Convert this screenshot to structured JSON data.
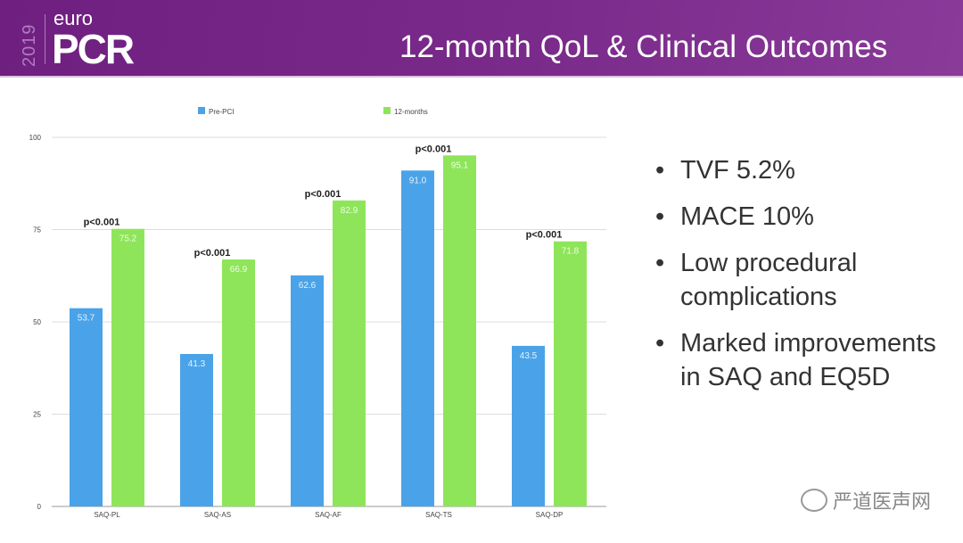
{
  "header": {
    "year": "2019",
    "logo_small": "euro",
    "logo_big": "PCR",
    "title": "12-month QoL & Clinical Outcomes"
  },
  "bullets": [
    "TVF 5.2%",
    "MACE 10%",
    "Low procedural complications",
    "Marked improvements in SAQ and EQ5D"
  ],
  "watermark": "严道医声网",
  "chart_data": {
    "type": "bar",
    "categories": [
      "SAQ-PL",
      "SAQ-AS",
      "SAQ-AF",
      "SAQ-TS",
      "SAQ-DP"
    ],
    "series": [
      {
        "name": "Pre-PCI",
        "color": "#4aa3e8",
        "values": [
          53.7,
          41.3,
          62.6,
          91.0,
          43.5
        ]
      },
      {
        "name": "12-months",
        "color": "#8ee55a",
        "values": [
          75.2,
          66.9,
          82.9,
          95.1,
          71.8
        ]
      }
    ],
    "annotations": [
      "p<0.001",
      "p<0.001",
      "p<0.001",
      "p<0.001",
      "p<0.001"
    ],
    "yticks": [
      0,
      25,
      50,
      75,
      100
    ],
    "ylim": [
      0,
      100
    ],
    "grid": true,
    "legend": "top"
  }
}
